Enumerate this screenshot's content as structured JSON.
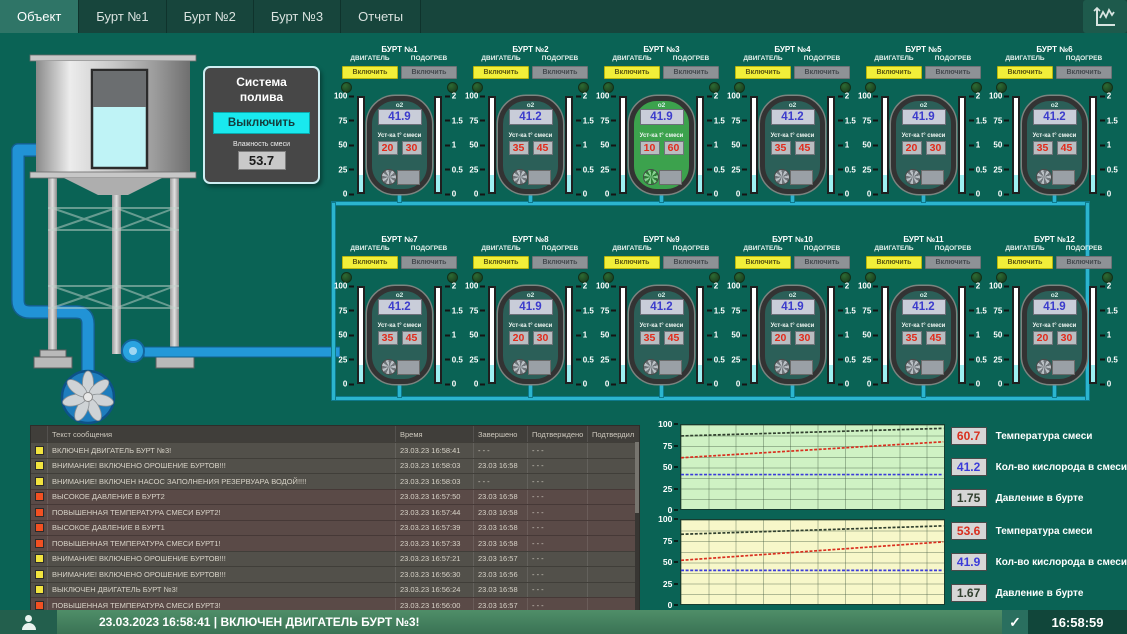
{
  "tabs": [
    {
      "label": "Объект",
      "active": true
    },
    {
      "label": "Бурт №1",
      "active": false
    },
    {
      "label": "Бурт №2",
      "active": false
    },
    {
      "label": "Бурт №3",
      "active": false
    },
    {
      "label": "Отчеты",
      "active": false
    }
  ],
  "trend_icon": "trend-chart-icon",
  "irrigation": {
    "title_line1": "Система",
    "title_line2": "полива",
    "button_label": "Выключить",
    "humidity_label": "Влажность смеси",
    "humidity_value": "53.7"
  },
  "unit_common": {
    "motor_label": "ДВИГАТЕЛЬ",
    "heat_label": "ПОДОГРЕВ",
    "motor_button": "Включить",
    "heat_button": "Включить",
    "o2_label": "о2",
    "set_label": "Уст-ка t° смеси",
    "left_scale": [
      "100",
      "75",
      "50",
      "25",
      "0"
    ],
    "right_scale": [
      "2",
      "1.5",
      "1",
      "0.5",
      "0"
    ]
  },
  "units": [
    {
      "title": "БУРТ №1",
      "o2": "41.9",
      "set_low": "20",
      "set_high": "30",
      "active": false
    },
    {
      "title": "БУРТ №2",
      "o2": "41.2",
      "set_low": "35",
      "set_high": "45",
      "active": false
    },
    {
      "title": "БУРТ №3",
      "o2": "41.9",
      "set_low": "10",
      "set_high": "60",
      "active": true
    },
    {
      "title": "БУРТ №4",
      "o2": "41.2",
      "set_low": "35",
      "set_high": "45",
      "active": false
    },
    {
      "title": "БУРТ №5",
      "o2": "41.9",
      "set_low": "20",
      "set_high": "30",
      "active": false
    },
    {
      "title": "БУРТ №6",
      "o2": "41.2",
      "set_low": "35",
      "set_high": "45",
      "active": false
    },
    {
      "title": "БУРТ №7",
      "o2": "41.2",
      "set_low": "35",
      "set_high": "45",
      "active": false
    },
    {
      "title": "БУРТ №8",
      "o2": "41.9",
      "set_low": "20",
      "set_high": "30",
      "active": false
    },
    {
      "title": "БУРТ №9",
      "o2": "41.2",
      "set_low": "35",
      "set_high": "45",
      "active": false
    },
    {
      "title": "БУРТ №10",
      "o2": "41.9",
      "set_low": "20",
      "set_high": "30",
      "active": false
    },
    {
      "title": "БУРТ №11",
      "o2": "41.2",
      "set_low": "35",
      "set_high": "45",
      "active": false
    },
    {
      "title": "БУРТ №12",
      "o2": "41.9",
      "set_low": "20",
      "set_high": "30",
      "active": false
    }
  ],
  "alarm_table": {
    "headers": [
      "Текст сообщения",
      "Время",
      "Завершено",
      "Подтверждено",
      "Подтвердил"
    ],
    "rows": [
      {
        "severity": "warning",
        "text": "ВКЛЮЧЕН ДВИГАТЕЛЬ БУРТ №3!",
        "time": "23.03.23  16:58:41",
        "completed": "- - -",
        "confirmed": "- - -",
        "confirmed_by": ""
      },
      {
        "severity": "warning",
        "text": "ВНИМАНИЕ! ВКЛЮЧЕНО ОРОШЕНИЕ БУРТОВ!!!",
        "time": "23.03.23  16:58:03",
        "completed": "23.03  16:58",
        "confirmed": "- - -",
        "confirmed_by": ""
      },
      {
        "severity": "warning",
        "text": "ВНИМАНИЕ! ВКЛЮЧЕН НАСОС ЗАПОЛНЕНИЯ РЕЗЕРВУАРА ВОДОЙ!!!!",
        "time": "23.03.23  16:58:03",
        "completed": "- - -",
        "confirmed": "- - -",
        "confirmed_by": ""
      },
      {
        "severity": "alarm",
        "text": "ВЫСОКОЕ ДАВЛЕНИЕ В БУРТ2",
        "time": "23.03.23  16:57:50",
        "completed": "23.03  16:58",
        "confirmed": "- - -",
        "confirmed_by": ""
      },
      {
        "severity": "alarm",
        "text": "ПОВЫШЕННАЯ ТЕМПЕРАТУРА СМЕСИ БУРТ2!",
        "time": "23.03.23  16:57:44",
        "completed": "23.03  16:58",
        "confirmed": "- - -",
        "confirmed_by": ""
      },
      {
        "severity": "alarm",
        "text": "ВЫСОКОЕ ДАВЛЕНИЕ В БУРТ1",
        "time": "23.03.23  16:57:39",
        "completed": "23.03  16:58",
        "confirmed": "- - -",
        "confirmed_by": ""
      },
      {
        "severity": "alarm",
        "text": "ПОВЫШЕННАЯ ТЕМПЕРАТУРА СМЕСИ БУРТ1!",
        "time": "23.03.23  16:57:33",
        "completed": "23.03  16:58",
        "confirmed": "- - -",
        "confirmed_by": ""
      },
      {
        "severity": "warning",
        "text": "ВНИМАНИЕ! ВКЛЮЧЕНО ОРОШЕНИЕ БУРТОВ!!!",
        "time": "23.03.23  16:57:21",
        "completed": "23.03  16:57",
        "confirmed": "- - -",
        "confirmed_by": ""
      },
      {
        "severity": "warning",
        "text": "ВНИМАНИЕ! ВКЛЮЧЕНО ОРОШЕНИЕ БУРТОВ!!!",
        "time": "23.03.23  16:56:30",
        "completed": "23.03  16:56",
        "confirmed": "- - -",
        "confirmed_by": ""
      },
      {
        "severity": "warning",
        "text": "ВЫКЛЮЧЕН ДВИГАТЕЛЬ БУРТ №3!",
        "time": "23.03.23  16:56:24",
        "completed": "23.03  16:58",
        "confirmed": "- - -",
        "confirmed_by": ""
      },
      {
        "severity": "alarm",
        "text": "ПОВЫШЕННАЯ ТЕМПЕРАТУРА СМЕСИ БУРТ3!",
        "time": "23.03.23  16:56:00",
        "completed": "23.03  16:57",
        "confirmed": "- - -",
        "confirmed_by": ""
      }
    ]
  },
  "chart_data": [
    {
      "type": "line",
      "background": "#cff2c4",
      "ylim": [
        0,
        100
      ],
      "yticks": [
        "100",
        "75",
        "50",
        "25",
        "0"
      ],
      "grid": true,
      "legend_position": "right",
      "series": [
        {
          "label": "Температура смеси",
          "value": "60.7",
          "color": "#d92f1f",
          "plot_start": 61,
          "plot_end": 80
        },
        {
          "label": "Кол-во кислорода в смеси",
          "value": "41.2",
          "color": "#3b3bd9",
          "plot_start": 41,
          "plot_end": 41
        },
        {
          "label": "Давление в бурте",
          "value": "1.75",
          "color": "#31402f",
          "plot_start": 87,
          "plot_end": 96
        }
      ]
    },
    {
      "type": "line",
      "background": "#f7f7c9",
      "ylim": [
        0,
        100
      ],
      "yticks": [
        "100",
        "75",
        "50",
        "25",
        "0"
      ],
      "grid": true,
      "legend_position": "right",
      "series": [
        {
          "label": "Температура смеси",
          "value": "53.6",
          "color": "#d92f1f",
          "plot_start": 52,
          "plot_end": 74
        },
        {
          "label": "Кол-во кислорода в смеси",
          "value": "41.9",
          "color": "#3b3bd9",
          "plot_start": 40,
          "plot_end": 40
        },
        {
          "label": "Давление в бурте",
          "value": "1.67",
          "color": "#31402f",
          "plot_start": 83,
          "plot_end": 93
        }
      ]
    }
  ],
  "status_bar": {
    "event_message": "23.03.2023  16:58:41 |  ВКЛЮЧЕН ДВИГАТЕЛЬ БУРТ №3!",
    "check_glyph": "✓",
    "clock": "16:58:59"
  },
  "colors": {
    "accent_cyan": "#19e9ee",
    "pipe_blue": "#2193d6",
    "pipe_cyan": "#2bb5cf",
    "alarm_yellow": "#f2e43e",
    "alarm_red": "#f25022",
    "active_unit_green": "#3ca24d",
    "o2_text_blue": "#3c3ccc",
    "setpoint_red": "#e22b1b"
  }
}
